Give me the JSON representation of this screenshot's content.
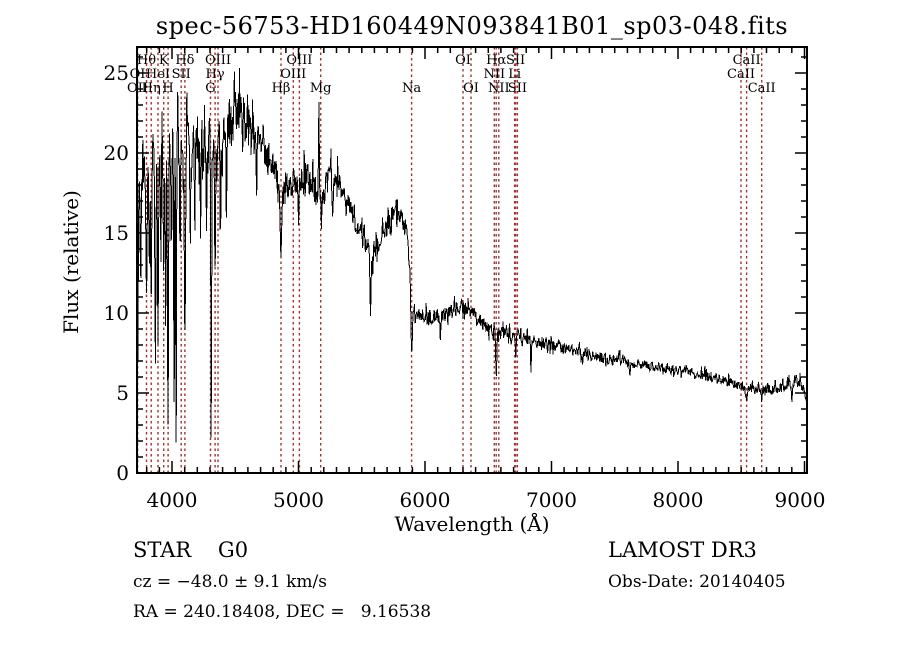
{
  "title": "spec-56753-HD160449N093841B01_sp03-048.fits",
  "footer": {
    "class_label": "STAR    G0",
    "cz": "cz = −48.0 ± 9.1 km/s",
    "ra_dec": "RA = 240.18408, DEC =   9.16538",
    "survey": "LAMOST DR3",
    "obs_date": "Obs-Date: 20140405"
  },
  "chart_data": {
    "type": "line",
    "title": "spec-56753-HD160449N093841B01_sp03-048.fits",
    "xlabel": "Wavelength (Å)",
    "ylabel": "Flux (relative)",
    "xlim": [
      3723,
      9020
    ],
    "ylim": [
      0,
      26.625
    ],
    "xticks": [
      4000,
      5000,
      6000,
      7000,
      8000,
      9000
    ],
    "yticks": [
      0,
      5,
      10,
      15,
      20,
      25
    ],
    "x_minor_step": 100,
    "y_minor_step": 1,
    "grid": false,
    "line_color": "#000000",
    "marker_line_color": "#a03232",
    "spectral_lines": [
      {
        "label": "OII",
        "wavelength": 3727.1,
        "row": 3
      },
      {
        "label": "OI",
        "wavelength": 3727.1,
        "row": 2
      },
      {
        "label": "Hθ",
        "wavelength": 3798.0,
        "row": 1
      },
      {
        "label": "Hη",
        "wavelength": 3835.4,
        "row": 3
      },
      {
        "label": "HeI",
        "wavelength": 3889.0,
        "row": 2
      },
      {
        "label": "K",
        "wavelength": 3933.7,
        "row": 1
      },
      {
        "label": "H",
        "wavelength": 3968.5,
        "row": 3
      },
      {
        "label": "SII",
        "wavelength": 4072.3,
        "row": 2
      },
      {
        "label": "Hδ",
        "wavelength": 4101.7,
        "row": 1
      },
      {
        "label": "G",
        "wavelength": 4304.4,
        "row": 3
      },
      {
        "label": "Hγ",
        "wavelength": 4340.5,
        "row": 2
      },
      {
        "label": "OIII",
        "wavelength": 4363.2,
        "row": 1
      },
      {
        "label": "Hβ",
        "wavelength": 4861.3,
        "row": 3
      },
      {
        "label": "OIII",
        "wavelength": 4958.9,
        "row": 2
      },
      {
        "label": "OIII",
        "wavelength": 5006.8,
        "row": 1
      },
      {
        "label": "Mg",
        "wavelength": 5175.4,
        "row": 3
      },
      {
        "label": "Na",
        "wavelength": 5893.9,
        "row": 3
      },
      {
        "label": "OI",
        "wavelength": 6300.3,
        "row": 1
      },
      {
        "label": "OI",
        "wavelength": 6363.8,
        "row": 3
      },
      {
        "label": "NII",
        "wavelength": 6548.0,
        "row": 2
      },
      {
        "label": "Hα",
        "wavelength": 6562.8,
        "row": 1
      },
      {
        "label": "NII",
        "wavelength": 6583.5,
        "row": 3
      },
      {
        "label": "Li",
        "wavelength": 6707.9,
        "row": 2
      },
      {
        "label": "SII",
        "wavelength": 6716.4,
        "row": 1
      },
      {
        "label": "SII",
        "wavelength": 6730.8,
        "row": 3
      },
      {
        "label": "CaII",
        "wavelength": 8498.0,
        "row": 2
      },
      {
        "label": "CaII",
        "wavelength": 8542.1,
        "row": 1
      },
      {
        "label": "CaII",
        "wavelength": 8662.1,
        "row": 3
      }
    ],
    "envelope_points": [
      [
        3723,
        17
      ],
      [
        3740,
        18.5
      ],
      [
        3780,
        19.5
      ],
      [
        3830,
        20.3
      ],
      [
        3900,
        20.6
      ],
      [
        3960,
        20.2
      ],
      [
        4020,
        20.8
      ],
      [
        4080,
        20.8
      ],
      [
        4140,
        21.0
      ],
      [
        4200,
        21.0
      ],
      [
        4260,
        21.3
      ],
      [
        4320,
        20.8
      ],
      [
        4380,
        21.2
      ],
      [
        4440,
        21.8
      ],
      [
        4500,
        22.0
      ],
      [
        4560,
        22.3
      ],
      [
        4620,
        22.0
      ],
      [
        4680,
        21.3
      ],
      [
        4740,
        20.3
      ],
      [
        4800,
        19.2
      ],
      [
        4861,
        17.8
      ],
      [
        4920,
        18.0
      ],
      [
        4980,
        18.3
      ],
      [
        5040,
        18.6
      ],
      [
        5100,
        18.4
      ],
      [
        5175,
        16.8
      ],
      [
        5240,
        18.6
      ],
      [
        5300,
        18.4
      ],
      [
        5360,
        17.4
      ],
      [
        5420,
        16.4
      ],
      [
        5480,
        15.2
      ],
      [
        5540,
        13.9
      ],
      [
        5580,
        13.6
      ],
      [
        5620,
        14.0
      ],
      [
        5680,
        15.0
      ],
      [
        5740,
        16.0
      ],
      [
        5800,
        16.3
      ],
      [
        5850,
        15.2
      ],
      [
        5880,
        13.0
      ],
      [
        5910,
        10.4
      ],
      [
        5950,
        9.9
      ],
      [
        6000,
        9.7
      ],
      [
        6100,
        9.8
      ],
      [
        6200,
        10.0
      ],
      [
        6290,
        10.4
      ],
      [
        6360,
        10.0
      ],
      [
        6420,
        9.6
      ],
      [
        6500,
        9.1
      ],
      [
        6600,
        8.8
      ],
      [
        6700,
        8.6
      ],
      [
        6800,
        8.4
      ],
      [
        6900,
        8.2
      ],
      [
        7000,
        8.0
      ],
      [
        7150,
        7.7
      ],
      [
        7300,
        7.4
      ],
      [
        7450,
        7.1
      ],
      [
        7600,
        6.9
      ],
      [
        7750,
        6.7
      ],
      [
        7900,
        6.55
      ],
      [
        8050,
        6.35
      ],
      [
        8200,
        6.1
      ],
      [
        8350,
        5.8
      ],
      [
        8500,
        5.4
      ],
      [
        8650,
        5.15
      ],
      [
        8800,
        5.3
      ],
      [
        8900,
        5.6
      ],
      [
        8960,
        5.7
      ],
      [
        9000,
        5.1
      ],
      [
        9020,
        4.7
      ]
    ],
    "noise_segments": [
      [
        3723,
        4650,
        1.65
      ],
      [
        4650,
        5350,
        0.85
      ],
      [
        5350,
        5900,
        0.6
      ],
      [
        5900,
        6600,
        0.45
      ],
      [
        6600,
        7600,
        0.35
      ],
      [
        7600,
        9020,
        0.3
      ]
    ],
    "absorption_dips": [
      [
        3727,
        6.0,
        5
      ],
      [
        3752,
        12,
        4
      ],
      [
        3798,
        11,
        5
      ],
      [
        3820,
        13,
        4
      ],
      [
        3835,
        10,
        4
      ],
      [
        3868,
        6.2,
        4
      ],
      [
        3889,
        8,
        4
      ],
      [
        3912,
        13,
        3
      ],
      [
        3934,
        12.5,
        4
      ],
      [
        3950,
        8.5,
        3
      ],
      [
        3968,
        2.6,
        4
      ],
      [
        3995,
        13,
        3
      ],
      [
        4016,
        3.6,
        3
      ],
      [
        4032,
        1.0,
        3
      ],
      [
        4063,
        13,
        3
      ],
      [
        4102,
        8.6,
        5
      ],
      [
        4144,
        14,
        3
      ],
      [
        4180,
        15,
        3
      ],
      [
        4226,
        14.5,
        3
      ],
      [
        4272,
        15,
        3
      ],
      [
        4310,
        1.2,
        3
      ],
      [
        4340,
        12.5,
        4
      ],
      [
        4383,
        14,
        3
      ],
      [
        4430,
        15.5,
        3
      ],
      [
        4668,
        17,
        3
      ],
      [
        4861,
        13.6,
        6
      ],
      [
        5000,
        15.5,
        3
      ],
      [
        5156,
        8.6,
        3
      ],
      [
        5270,
        15.8,
        4
      ],
      [
        5569,
        9.8,
        4
      ],
      [
        5894,
        7.4,
        6
      ],
      [
        6122,
        8.2,
        3
      ],
      [
        6563,
        5.8,
        4
      ],
      [
        6717,
        7.2,
        3
      ],
      [
        6838,
        6.3,
        3
      ],
      [
        7620,
        6.0,
        3
      ],
      [
        8542,
        4.4,
        4
      ],
      [
        8662,
        4.6,
        3
      ],
      [
        8900,
        4.4,
        3
      ]
    ],
    "emission_spikes": [
      [
        4500,
        23.9
      ],
      [
        4545,
        23.5
      ],
      [
        5161,
        23.2
      ],
      [
        8935,
        6.2
      ]
    ],
    "first_point_flux": 0.4,
    "sample_step_angstrom": 4,
    "noise_seed": 11
  }
}
